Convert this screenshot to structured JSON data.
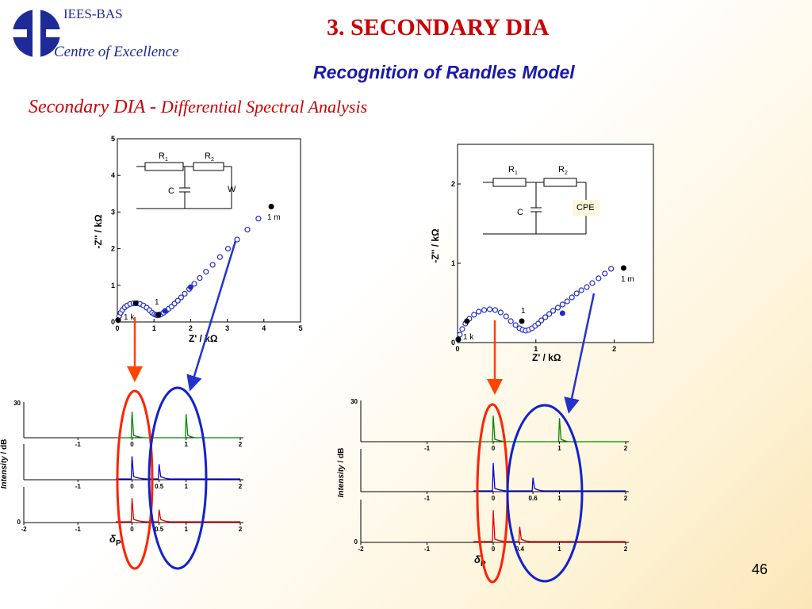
{
  "header": {
    "logo_org": "IEES-BAS",
    "logo_tagline": "Centre of Excellence",
    "title": "3. SECONDARY DIA",
    "subtitle": "Recognition of Randles Model"
  },
  "heading": {
    "main": "Secondary DIA -",
    "sub": "Differential Spectral Analysis"
  },
  "page_number": "46",
  "colors": {
    "red": "#cc0000",
    "blue": "#1a1aaa",
    "marker_blue": "#1f2acc",
    "green": "#008800",
    "spec_blue": "#0000dd",
    "spec_red": "#dd0000",
    "arrow_red": "#ff4400",
    "arrow_blue": "#2233cc"
  },
  "circuit_left": {
    "r1": "R",
    "r1_sub": "1",
    "r2": "R",
    "r2_sub": "2",
    "c": "C",
    "w": "W"
  },
  "circuit_right": {
    "r1": "R",
    "r1_sub": "1",
    "r2": "R",
    "r2_sub": "2",
    "c": "C",
    "cpe": "CPE"
  },
  "spectra_labels": {
    "ylabel": "Intensity",
    "ylabel_unit": "/ dB",
    "delta": "δ",
    "delta_sub": "P"
  },
  "chart_data": [
    {
      "type": "scatter",
      "xlabel": "Z' / kΩ",
      "ylabel": "-Z'' / kΩ",
      "xlim": [
        0,
        5
      ],
      "ylim": [
        0,
        5
      ],
      "xticks": [
        "0",
        "1",
        "2",
        "3",
        "4",
        "5"
      ],
      "yticks": [
        "0",
        "1",
        "2",
        "3",
        "4",
        "5"
      ],
      "annotations": [
        "1 m",
        "1",
        "1 k"
      ],
      "x": [
        0.02,
        0.05,
        0.09,
        0.14,
        0.2,
        0.27,
        0.35,
        0.44,
        0.53,
        0.62,
        0.71,
        0.8,
        0.88,
        0.95,
        1.01,
        1.06,
        1.1,
        1.15,
        1.2,
        1.26,
        1.33,
        1.4,
        1.48,
        1.56,
        1.65,
        1.74,
        1.84,
        1.96,
        2.1,
        2.25,
        2.42,
        2.6,
        2.8,
        3.02,
        3.27,
        3.55,
        3.85
      ],
      "y": [
        0.05,
        0.16,
        0.25,
        0.33,
        0.4,
        0.45,
        0.49,
        0.51,
        0.51,
        0.49,
        0.45,
        0.39,
        0.32,
        0.25,
        0.21,
        0.19,
        0.18,
        0.19,
        0.21,
        0.25,
        0.3,
        0.36,
        0.42,
        0.5,
        0.58,
        0.67,
        0.77,
        0.9,
        1.04,
        1.2,
        1.37,
        1.56,
        1.77,
        2.0,
        2.25,
        2.52,
        2.82
      ],
      "markers": [
        {
          "x": 0.02,
          "y": 0.05
        },
        {
          "x": 0.5,
          "y": 0.51
        },
        {
          "x": 1.12,
          "y": 0.2
        },
        {
          "x": 4.2,
          "y": 3.15
        }
      ],
      "blue_markers": [
        {
          "x": 1.3,
          "y": 0.3
        },
        {
          "x": 2.0,
          "y": 0.95
        }
      ]
    },
    {
      "type": "scatter",
      "xlabel": "Z' / kΩ",
      "ylabel": "-Z'' / kΩ",
      "xlim": [
        0,
        2.5
      ],
      "ylim": [
        0,
        2.5
      ],
      "xticks": [
        "0",
        "1",
        "2"
      ],
      "yticks": [
        "0",
        "1",
        "2"
      ],
      "annotations": [
        "1 m",
        "1",
        "1 k"
      ],
      "x": [
        0.01,
        0.03,
        0.06,
        0.1,
        0.15,
        0.21,
        0.27,
        0.34,
        0.41,
        0.48,
        0.55,
        0.62,
        0.68,
        0.74,
        0.79,
        0.83,
        0.87,
        0.91,
        0.95,
        0.99,
        1.03,
        1.07,
        1.12,
        1.17,
        1.22,
        1.28,
        1.34,
        1.4,
        1.46,
        1.52,
        1.58,
        1.65,
        1.72,
        1.8,
        1.88,
        1.96
      ],
      "y": [
        0.04,
        0.1,
        0.17,
        0.24,
        0.3,
        0.35,
        0.39,
        0.41,
        0.42,
        0.41,
        0.38,
        0.33,
        0.27,
        0.22,
        0.18,
        0.16,
        0.15,
        0.16,
        0.18,
        0.21,
        0.24,
        0.28,
        0.32,
        0.36,
        0.4,
        0.44,
        0.48,
        0.52,
        0.57,
        0.62,
        0.66,
        0.7,
        0.75,
        0.81,
        0.87,
        0.93
      ],
      "markers": [
        {
          "x": 0.01,
          "y": 0.04
        },
        {
          "x": 0.12,
          "y": 0.27
        },
        {
          "x": 0.82,
          "y": 0.27
        },
        {
          "x": 2.12,
          "y": 0.94
        }
      ],
      "blue_markers": [
        {
          "x": 1.34,
          "y": 0.37
        }
      ]
    },
    {
      "type": "line",
      "ylabel": "Intensity / dB",
      "xticks": [
        "-2",
        "-1",
        "0",
        "1",
        "2"
      ],
      "yticks": [
        "0",
        "30"
      ],
      "series": [
        {
          "values_x": [
            0,
            1
          ],
          "values_y": [
            30,
            27
          ]
        },
        {
          "values_x": [
            0,
            0.5
          ],
          "values_y": [
            26,
            17
          ]
        },
        {
          "values_x": [
            0,
            0.5
          ],
          "values_y": [
            27,
            14
          ]
        }
      ],
      "mid_ticks": [
        "-1",
        "0",
        "0.5",
        "1",
        "2"
      ]
    },
    {
      "type": "line",
      "ylabel": "Intensity / dB",
      "xticks": [
        "-2",
        "-1",
        "0",
        "1",
        "2"
      ],
      "yticks": [
        "0",
        "30"
      ],
      "series": [
        {
          "values_x": [
            0,
            1
          ],
          "values_y": [
            30,
            27
          ]
        },
        {
          "values_x": [
            0,
            0.6
          ],
          "values_y": [
            32,
            15
          ]
        },
        {
          "values_x": [
            0,
            0.4
          ],
          "values_y": [
            36,
            17
          ]
        }
      ],
      "mid_ticks": [
        "-1",
        "0",
        "0.6",
        "1",
        "2"
      ]
    }
  ]
}
